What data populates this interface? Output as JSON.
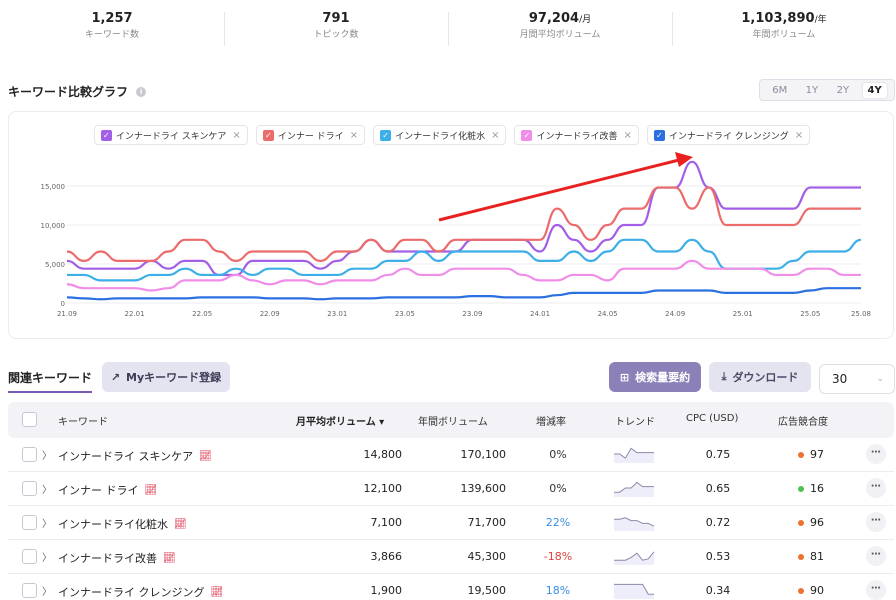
{
  "stats": [
    {
      "value": "1,257",
      "unit": "",
      "label": "キーワード数"
    },
    {
      "value": "791",
      "unit": "",
      "label": "トピック数"
    },
    {
      "value": "97,204",
      "unit": "/月",
      "label": "月間平均ボリューム"
    },
    {
      "value": "1,103,890",
      "unit": "/年",
      "label": "年間ボリューム"
    }
  ],
  "chart_section": {
    "title": "キーワード比較グラフ",
    "info_icon": "i",
    "range_tabs": [
      "6M",
      "1Y",
      "2Y",
      "4Y"
    ],
    "active_range": "4Y"
  },
  "chart_data": {
    "type": "line",
    "x": [
      "21.09",
      "21.10",
      "21.11",
      "21.12",
      "22.01",
      "22.02",
      "22.03",
      "22.04",
      "22.05",
      "22.06",
      "22.07",
      "22.08",
      "22.09",
      "22.10",
      "22.11",
      "22.12",
      "23.01",
      "23.02",
      "23.03",
      "23.04",
      "23.05",
      "23.06",
      "23.07",
      "23.08",
      "23.09",
      "23.10",
      "23.11",
      "23.12",
      "24.01",
      "24.02",
      "24.03",
      "24.04",
      "24.05",
      "24.06",
      "24.07",
      "24.08",
      "24.09",
      "24.10",
      "24.11",
      "24.12",
      "25.01",
      "25.02",
      "25.03",
      "25.04",
      "25.05",
      "25.06",
      "25.07",
      "25.08"
    ],
    "x_tick_labels": [
      "21.09",
      "22.01",
      "22.05",
      "22.09",
      "23.01",
      "23.05",
      "23.09",
      "24.01",
      "24.05",
      "24.09",
      "25.01",
      "25.05",
      "25.08"
    ],
    "y_ticks": [
      0,
      5000,
      10000,
      15000
    ],
    "y_tick_labels": [
      "0",
      "5,000",
      "10,000",
      "15,000"
    ],
    "ylim": [
      0,
      20000
    ],
    "grid": true,
    "series": [
      {
        "name": "インナードライ スキンケア",
        "color": "#a25fe6",
        "values": [
          5400,
          4400,
          4400,
          4400,
          4400,
          5400,
          4400,
          5400,
          5400,
          3600,
          3600,
          5400,
          5400,
          5400,
          5400,
          4400,
          5400,
          6600,
          8100,
          6600,
          6600,
          6600,
          6600,
          6600,
          8100,
          8100,
          8100,
          8100,
          6600,
          10000,
          8100,
          6600,
          8100,
          10000,
          10000,
          14800,
          14800,
          18100,
          14800,
          12100,
          12100,
          12100,
          12100,
          12100,
          14800,
          14800,
          14800,
          14800
        ]
      },
      {
        "name": "インナー ドライ",
        "color": "#ec6b6b",
        "values": [
          6600,
          5400,
          6600,
          5400,
          5400,
          5400,
          6600,
          8100,
          8100,
          6600,
          5400,
          6600,
          6600,
          6600,
          6600,
          5400,
          6600,
          6600,
          8100,
          6600,
          8100,
          8100,
          6600,
          8100,
          8100,
          8100,
          8100,
          8100,
          8100,
          12100,
          10000,
          8100,
          10000,
          12100,
          12100,
          14800,
          14800,
          12100,
          14800,
          10000,
          10000,
          10000,
          10000,
          10000,
          12100,
          12100,
          12100,
          12100
        ]
      },
      {
        "name": "インナードライ化粧水",
        "color": "#3caee8",
        "values": [
          3600,
          3600,
          2900,
          2900,
          2900,
          3600,
          3600,
          4400,
          3600,
          3600,
          4400,
          3600,
          4400,
          4400,
          3600,
          3600,
          3600,
          4400,
          4400,
          5400,
          5400,
          6600,
          5400,
          6600,
          6600,
          6600,
          6600,
          6600,
          5400,
          5400,
          6600,
          5400,
          6600,
          8100,
          8100,
          6600,
          6600,
          8100,
          6600,
          4400,
          4400,
          4400,
          4400,
          5400,
          6600,
          6600,
          6600,
          8100
        ]
      },
      {
        "name": "インナードライ改善",
        "color": "#f08de8",
        "values": [
          2400,
          1900,
          1900,
          1900,
          1900,
          1600,
          1900,
          2900,
          2900,
          2900,
          3600,
          2900,
          2400,
          2900,
          2900,
          2400,
          2900,
          2900,
          2900,
          3600,
          4400,
          3600,
          3600,
          4400,
          4400,
          4400,
          4400,
          3600,
          2900,
          2900,
          3600,
          3600,
          2900,
          4400,
          4400,
          4400,
          4400,
          5400,
          4400,
          4400,
          4400,
          4400,
          3600,
          3600,
          4400,
          4400,
          3600,
          3600
        ]
      },
      {
        "name": "インナードライ クレンジング",
        "color": "#2b6fe0",
        "values": [
          720,
          590,
          480,
          590,
          590,
          590,
          590,
          590,
          720,
          720,
          720,
          720,
          590,
          590,
          590,
          480,
          590,
          590,
          590,
          720,
          720,
          720,
          720,
          720,
          880,
          880,
          720,
          720,
          720,
          1000,
          1300,
          1300,
          1300,
          1300,
          1300,
          1600,
          1600,
          1600,
          1600,
          1300,
          1300,
          1300,
          1300,
          1300,
          1600,
          1900,
          1900,
          1900
        ]
      }
    ]
  },
  "related": {
    "tab_label": "関連キーワード",
    "my_keyword_button": "Myキーワード登録",
    "summary_button": "検索量要約",
    "download_button": "ダウンロード",
    "rows_per_page": "30",
    "columns": [
      "キーワード",
      "月平均ボリューム ▾",
      "年間ボリューム",
      "増減率",
      "トレンド",
      "CPC (USD)",
      "広告競合度"
    ],
    "rows": [
      {
        "keyword": "インナードライ スキンケア",
        "monthly": "14,800",
        "yearly": "170,100",
        "change": "0%",
        "change_color": "#333333",
        "cpc": "0.75",
        "competition": "97",
        "comp_color": "#f07030",
        "trend": [
          0.5,
          0.5,
          0.2,
          0.9,
          0.6,
          0.6,
          0.6,
          0.6
        ]
      },
      {
        "keyword": "インナー ドライ",
        "monthly": "12,100",
        "yearly": "139,600",
        "change": "0%",
        "change_color": "#333333",
        "cpc": "0.65",
        "competition": "16",
        "comp_color": "#4cc24c",
        "trend": [
          0.2,
          0.2,
          0.5,
          0.5,
          0.9,
          0.6,
          0.6,
          0.6
        ]
      },
      {
        "keyword": "インナードライ化粧水",
        "monthly": "7,100",
        "yearly": "71,700",
        "change": "22%",
        "change_color": "#3a8ee8",
        "cpc": "0.72",
        "competition": "96",
        "comp_color": "#f07030",
        "trend": [
          0.7,
          0.7,
          0.8,
          0.6,
          0.6,
          0.4,
          0.4,
          0.2
        ]
      },
      {
        "keyword": "インナードライ改善",
        "monthly": "3,866",
        "yearly": "45,300",
        "change": "-18%",
        "change_color": "#e04040",
        "cpc": "0.53",
        "competition": "81",
        "comp_color": "#f07030",
        "trend": [
          0.2,
          0.2,
          0.2,
          0.4,
          0.7,
          0.2,
          0.3,
          0.8
        ]
      },
      {
        "keyword": "インナードライ クレンジング",
        "monthly": "1,900",
        "yearly": "19,500",
        "change": "18%",
        "change_color": "#3a8ee8",
        "cpc": "0.34",
        "competition": "90",
        "comp_color": "#f07030",
        "trend": [
          0.9,
          0.9,
          0.9,
          0.9,
          0.9,
          0.9,
          0.2,
          0.2
        ]
      }
    ]
  }
}
